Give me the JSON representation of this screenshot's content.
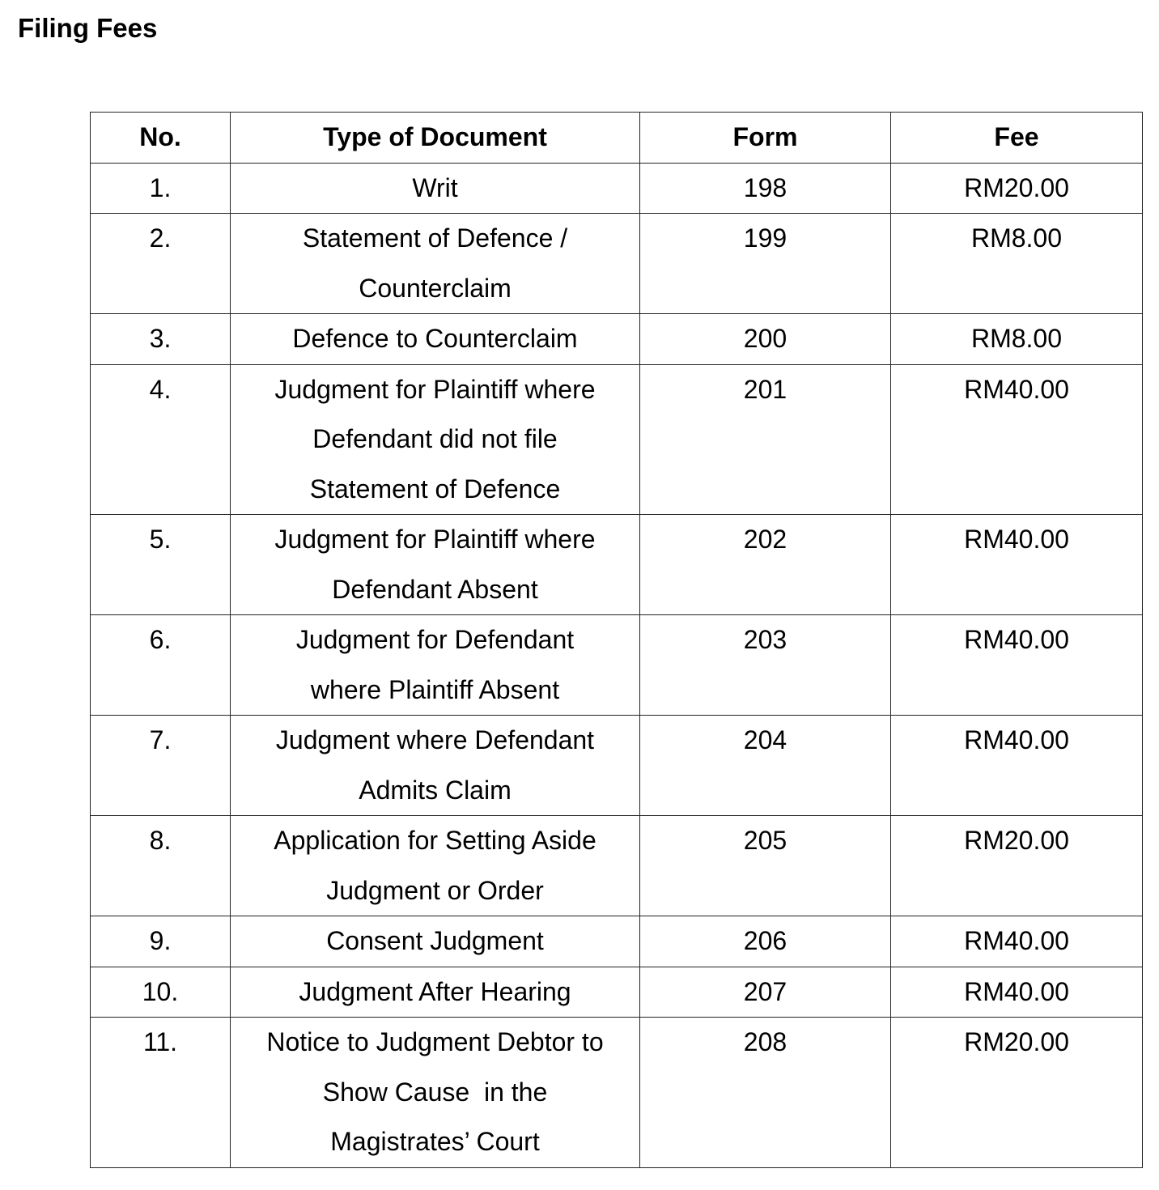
{
  "title": "Filing Fees",
  "table": {
    "headers": [
      "No.",
      "Type of Document",
      "Form",
      "Fee"
    ],
    "rows": [
      {
        "no": "1.",
        "type": [
          "Writ"
        ],
        "form": "198",
        "fee": "RM20.00"
      },
      {
        "no": "2.",
        "type": [
          "Statement of Defence /",
          "Counterclaim"
        ],
        "form": "199",
        "fee": "RM8.00"
      },
      {
        "no": "3.",
        "type": [
          "Defence to Counterclaim"
        ],
        "form": "200",
        "fee": "RM8.00"
      },
      {
        "no": "4.",
        "type": [
          "Judgment for Plaintiff where",
          "Defendant did not file",
          "Statement of Defence"
        ],
        "form": "201",
        "fee": "RM40.00"
      },
      {
        "no": "5.",
        "type": [
          "Judgment for Plaintiff where",
          "Defendant Absent"
        ],
        "form": "202",
        "fee": "RM40.00"
      },
      {
        "no": "6.",
        "type": [
          "Judgment for Defendant",
          "where Plaintiff Absent"
        ],
        "form": "203",
        "fee": "RM40.00"
      },
      {
        "no": "7.",
        "type": [
          "Judgment where Defendant",
          "Admits Claim"
        ],
        "form": "204",
        "fee": "RM40.00"
      },
      {
        "no": "8.",
        "type": [
          "Application for Setting Aside",
          "Judgment or Order"
        ],
        "form": "205",
        "fee": "RM20.00"
      },
      {
        "no": "9.",
        "type": [
          "Consent Judgment"
        ],
        "form": "206",
        "fee": "RM40.00"
      },
      {
        "no": "10.",
        "type": [
          "Judgment After Hearing"
        ],
        "form": "207",
        "fee": "RM40.00"
      },
      {
        "no": "11.",
        "type": [
          "Notice to Judgment Debtor to",
          "Show Cause  in the",
          "Magistrates’ Court"
        ],
        "form": "208",
        "fee": "RM20.00"
      }
    ]
  }
}
